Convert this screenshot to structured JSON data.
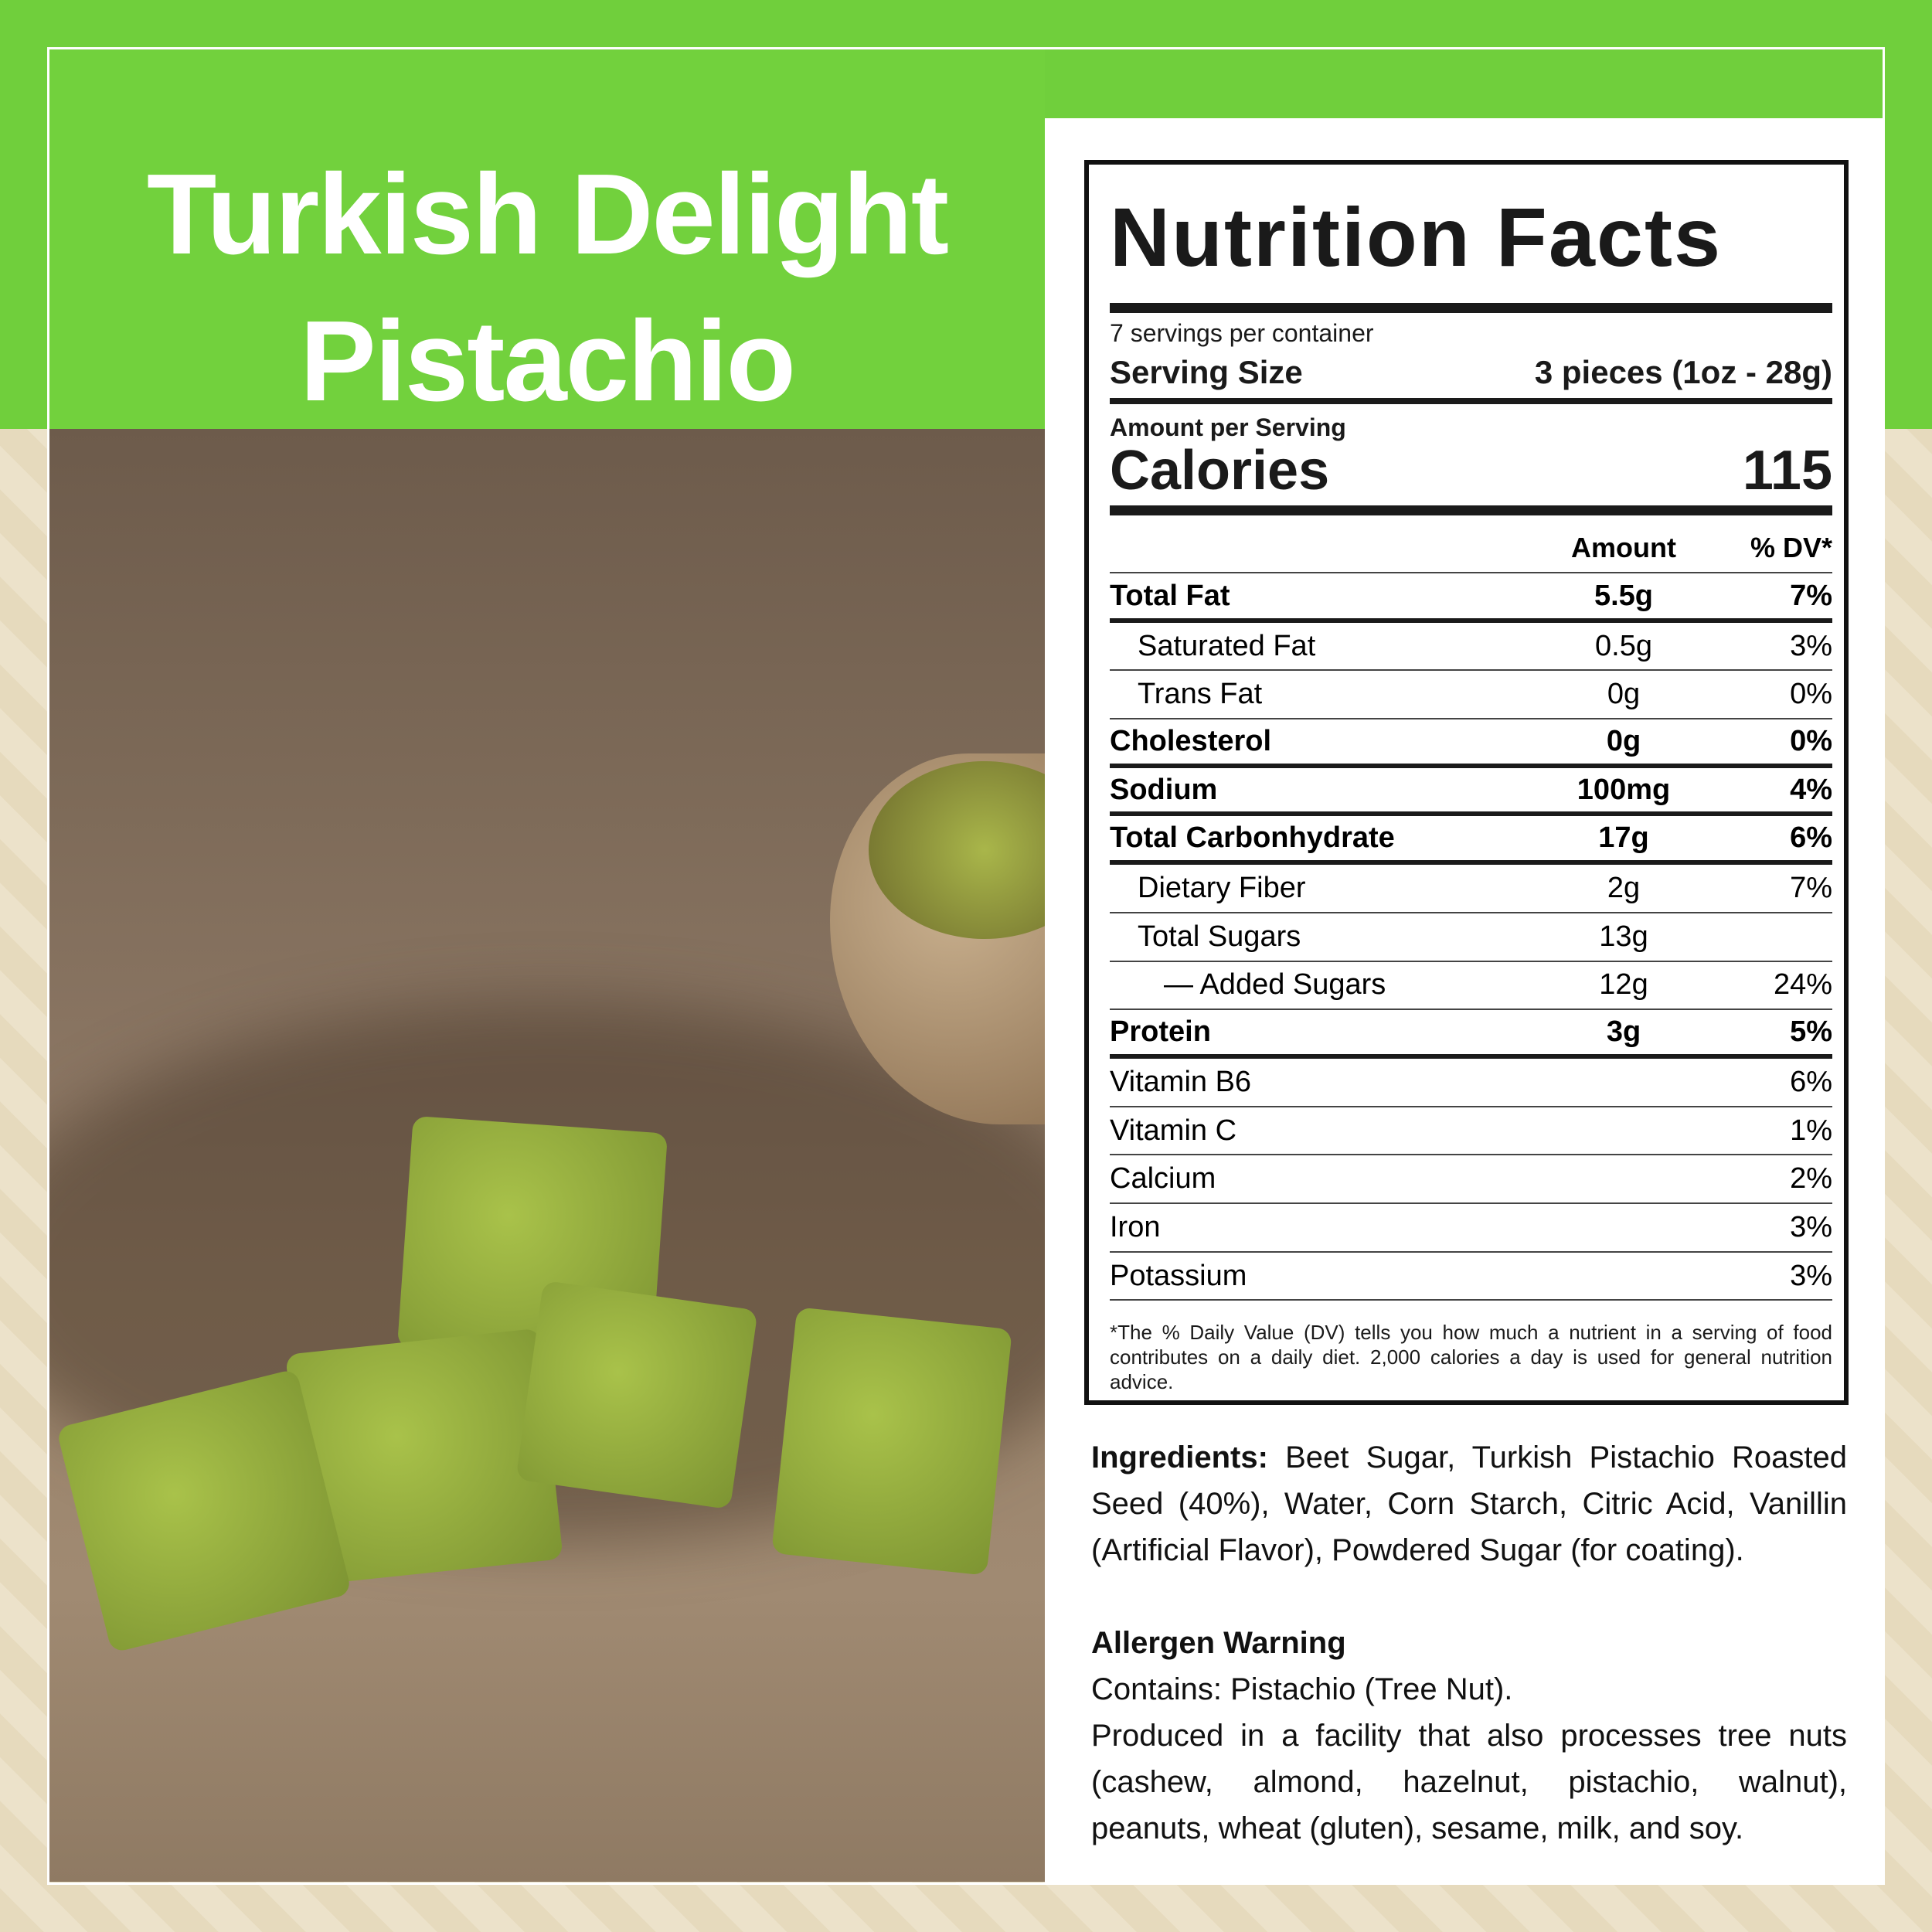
{
  "title": {
    "line1": "Turkish Delight",
    "line2": "Pistachio"
  },
  "colors": {
    "brand_green": "#70cf3c",
    "beige": "#e9dec3"
  },
  "nutrition": {
    "heading": "Nutrition Facts",
    "servings_per_container": "7 servings per container",
    "serving_size_label": "Serving Size",
    "serving_size_value": "3 pieces (1oz - 28g)",
    "amount_per_serving": "Amount per Serving",
    "calories_label": "Calories",
    "calories_value": "115",
    "col_amount": "Amount",
    "col_dv": "% DV*",
    "rows": [
      {
        "name": "Total Fat",
        "amount": "5.5g",
        "dv": "7%"
      },
      {
        "name": "Saturated Fat",
        "amount": "0.5g",
        "dv": "3%"
      },
      {
        "name": "Trans Fat",
        "amount": "0g",
        "dv": "0%"
      },
      {
        "name": "Cholesterol",
        "amount": "0g",
        "dv": "0%"
      },
      {
        "name": "Sodium",
        "amount": "100mg",
        "dv": "4%"
      },
      {
        "name": "Total Carbonhydrate",
        "amount": "17g",
        "dv": "6%"
      },
      {
        "name": "Dietary Fiber",
        "amount": "2g",
        "dv": "7%"
      },
      {
        "name": "Total Sugars",
        "amount": "13g",
        "dv": ""
      },
      {
        "name": "— Added Sugars",
        "amount": "12g",
        "dv": "24%"
      },
      {
        "name": "Protein",
        "amount": "3g",
        "dv": "5%"
      },
      {
        "name": "Vitamin B6",
        "amount": "",
        "dv": "6%"
      },
      {
        "name": "Vitamin C",
        "amount": "",
        "dv": "1%"
      },
      {
        "name": "Calcium",
        "amount": "",
        "dv": "2%"
      },
      {
        "name": "Iron",
        "amount": "",
        "dv": "3%"
      },
      {
        "name": "Potassium",
        "amount": "",
        "dv": "3%"
      }
    ],
    "footnote": "*The % Daily Value (DV) tells you how much a nutrient in a serving of food contributes on a daily diet. 2,000 calories a day is used for general nutrition advice."
  },
  "ingredients": {
    "label": "Ingredients:",
    "text": " Beet Sugar, Turkish Pistachio Roasted Seed (40%), Water, Corn Starch, Citric Acid, Vanillin (Artificial Flavor), Powdered Sugar (for coating)."
  },
  "allergen": {
    "heading": "Allergen Warning",
    "contains": "Contains: Pistachio (Tree Nut).",
    "facility": "Produced in a facility that also processes tree nuts (cashew, almond, hazelnut, pistachio, walnut), peanuts, wheat (gluten), sesame, milk, and soy."
  }
}
